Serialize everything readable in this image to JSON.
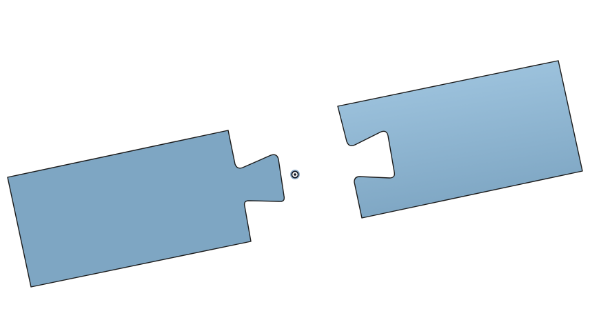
{
  "scene": {
    "background": "#ffffff",
    "part_stroke": "#1a1a1a",
    "part_fill_left": "#7ea6c3",
    "part_fill_right_top": "#a4c9e3",
    "part_fill_right_bottom": "#7ea6c3",
    "origin_marker": {
      "icon": "origin-target-icon",
      "outer_color": "#7aa0c4",
      "inner_color": "#0e1320"
    }
  },
  "parts": [
    {
      "id": "left-block",
      "feature": "tab-protrusion"
    },
    {
      "id": "right-block",
      "feature": "slot-cutout"
    }
  ]
}
